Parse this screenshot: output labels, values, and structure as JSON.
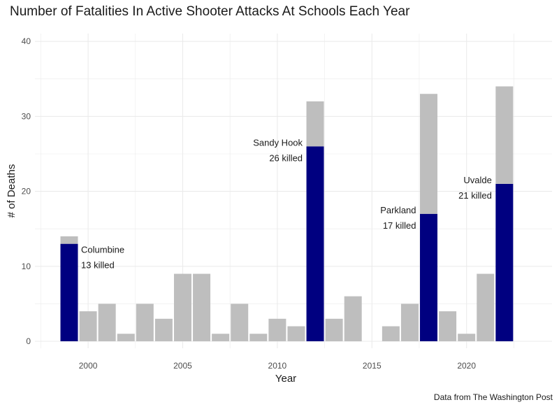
{
  "chart_data": {
    "type": "bar",
    "stacked": true,
    "title": "Number of Fatalities In Active Shooter Attacks At Schools Each Year",
    "xlabel": "Year",
    "ylabel": "# of Deaths",
    "caption": "Data from The Washington Post",
    "xlim": [
      1997,
      2025
    ],
    "ylim": [
      0,
      40
    ],
    "x_ticks": [
      2000,
      2005,
      2010,
      2015,
      2020
    ],
    "y_ticks": [
      0,
      10,
      20,
      30,
      40
    ],
    "grid": true,
    "colors": {
      "highlight": "#000080",
      "other": "#bebebe",
      "grid": "#ebebeb"
    },
    "series": [
      {
        "color": "#000080",
        "values": [
          {
            "x": 1999,
            "y": 13
          },
          {
            "x": 2012,
            "y": 26
          },
          {
            "x": 2018,
            "y": 17
          },
          {
            "x": 2022,
            "y": 21
          }
        ]
      },
      {
        "color": "#bebebe",
        "values": [
          {
            "x": 1999,
            "y": 1
          },
          {
            "x": 2000,
            "y": 4
          },
          {
            "x": 2001,
            "y": 5
          },
          {
            "x": 2002,
            "y": 1
          },
          {
            "x": 2003,
            "y": 5
          },
          {
            "x": 2004,
            "y": 3
          },
          {
            "x": 2005,
            "y": 9
          },
          {
            "x": 2006,
            "y": 9
          },
          {
            "x": 2007,
            "y": 1
          },
          {
            "x": 2008,
            "y": 5
          },
          {
            "x": 2009,
            "y": 1
          },
          {
            "x": 2010,
            "y": 3
          },
          {
            "x": 2011,
            "y": 2
          },
          {
            "x": 2012,
            "y": 6
          },
          {
            "x": 2013,
            "y": 3
          },
          {
            "x": 2014,
            "y": 6
          },
          {
            "x": 2016,
            "y": 2
          },
          {
            "x": 2017,
            "y": 5
          },
          {
            "x": 2018,
            "y": 16
          },
          {
            "x": 2019,
            "y": 4
          },
          {
            "x": 2020,
            "y": 1
          },
          {
            "x": 2021,
            "y": 9
          },
          {
            "x": 2022,
            "y": 13
          }
        ]
      }
    ],
    "annotations": [
      {
        "name": "Columbine",
        "x": 1999,
        "label_line1": "Columbine",
        "label_line2": "13 killed"
      },
      {
        "name": "Sandy Hook",
        "x": 2012,
        "label_line1": "Sandy Hook",
        "label_line2": "26 killed"
      },
      {
        "name": "Parkland",
        "x": 2018,
        "label_line1": "Parkland",
        "label_line2": "17 killed"
      },
      {
        "name": "Uvalde",
        "x": 2022,
        "label_line1": "Uvalde",
        "label_line2": "21 killed"
      }
    ]
  }
}
